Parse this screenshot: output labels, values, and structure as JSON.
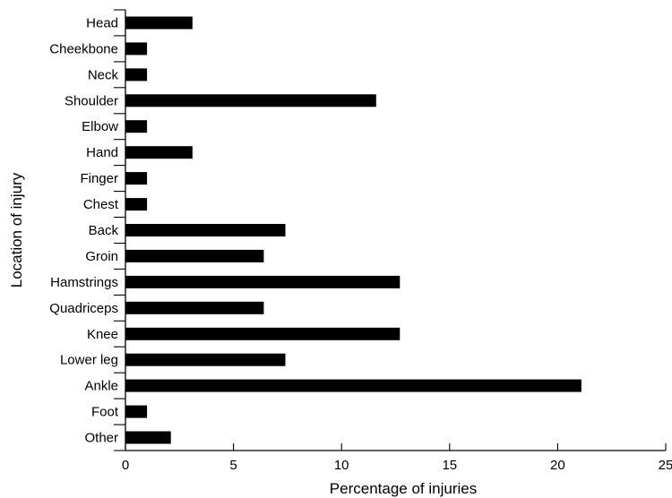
{
  "chart_data": {
    "type": "bar",
    "orientation": "horizontal",
    "title": "",
    "xlabel": "Percentage of injuries",
    "ylabel": "Location of injury",
    "xlim": [
      0,
      25
    ],
    "xticks": [
      0,
      5,
      10,
      15,
      20,
      25
    ],
    "grid": false,
    "legend": "none",
    "bar_color": "#000000",
    "categories": [
      "Head",
      "Cheekbone",
      "Neck",
      "Shoulder",
      "Elbow",
      "Hand",
      "Finger",
      "Chest",
      "Back",
      "Groin",
      "Hamstrings",
      "Quadriceps",
      "Knee",
      "Lower leg",
      "Ankle",
      "Foot",
      "Other"
    ],
    "values": [
      3.1,
      1.0,
      1.0,
      11.6,
      1.0,
      3.1,
      1.0,
      1.0,
      7.4,
      6.4,
      12.7,
      6.4,
      12.7,
      7.4,
      21.1,
      1.0,
      2.1
    ]
  }
}
